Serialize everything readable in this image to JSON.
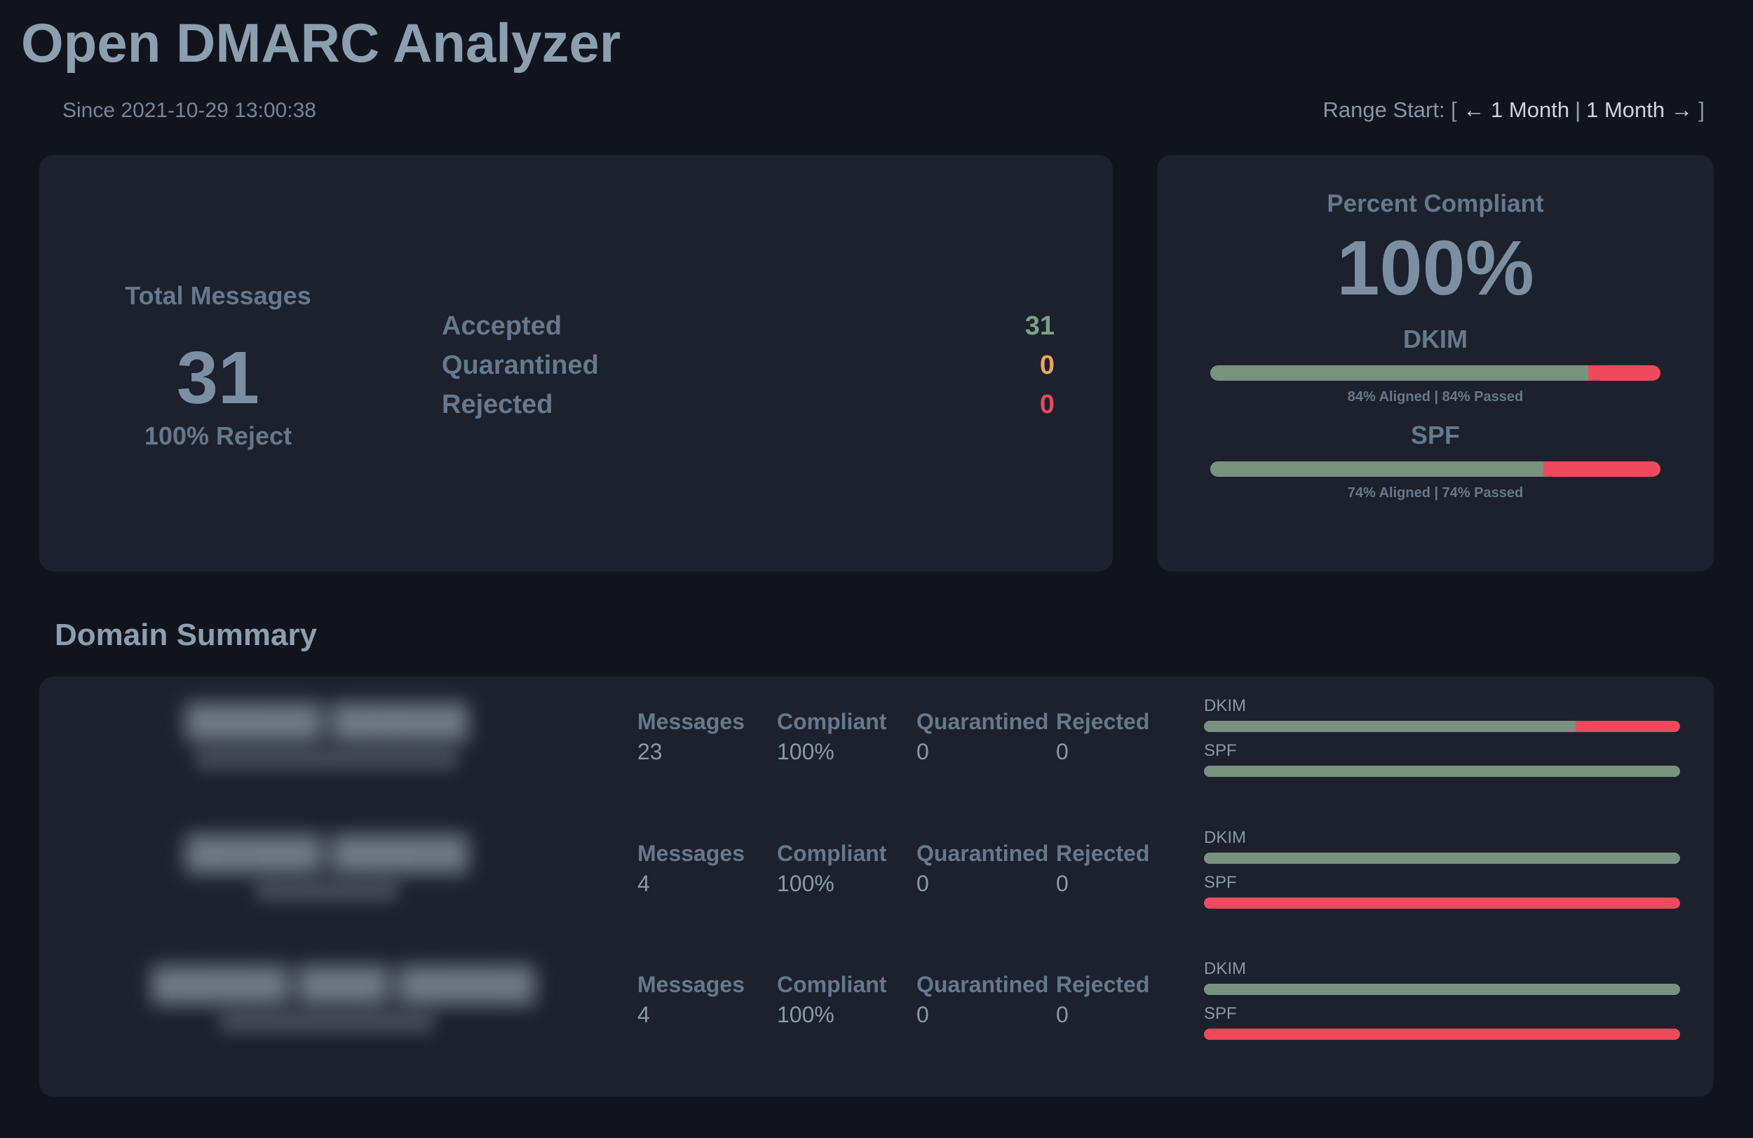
{
  "colors": {
    "green": "#7aa287",
    "orange": "#eda55f",
    "red": "#e44b60",
    "bar_green": "#79927f",
    "bar_red": "#ee4a5c",
    "page_bg": "#12141d",
    "card_bg": "#1d212d",
    "heading": "#8c9fb1"
  },
  "header": {
    "title": "Open DMARC Analyzer",
    "since": "Since 2021-10-29 13:00:38",
    "range": {
      "label": "Range Start: [",
      "prev_link": "← 1 Month",
      "separator": "|",
      "next_link": "1 Month →",
      "close": "]"
    }
  },
  "totals": {
    "title": "Total Messages",
    "count": "31",
    "subtitle": "100% Reject",
    "dispositions": [
      {
        "label": "Accepted",
        "value": "31",
        "color_key": "green"
      },
      {
        "label": "Quarantined",
        "value": "0",
        "color_key": "orange"
      },
      {
        "label": "Rejected",
        "value": "0",
        "color_key": "red"
      }
    ]
  },
  "compliance": {
    "title": "Percent Compliant",
    "percent": "100%",
    "bars": [
      {
        "name": "DKIM",
        "green_pct": 84,
        "caption": "84% Aligned | 84% Passed"
      },
      {
        "name": "SPF",
        "green_pct": 74,
        "caption": "74% Aligned | 74% Passed"
      }
    ]
  },
  "domain_summary": {
    "title": "Domain Summary",
    "rows": [
      {
        "domain_redacted": "██████ ██████",
        "domain_sub_redacted": "██████████████████████",
        "stats": [
          {
            "label": "Messages",
            "value": "23"
          },
          {
            "label": "Compliant",
            "value": "100%"
          },
          {
            "label": "Quarantined",
            "value": "0"
          },
          {
            "label": "Rejected",
            "value": "0"
          }
        ],
        "bars": [
          {
            "name": "DKIM",
            "green_pct": 78
          },
          {
            "name": "SPF",
            "green_pct": 100
          }
        ]
      },
      {
        "domain_redacted": "██████ ██████",
        "domain_sub_redacted": "████████████",
        "stats": [
          {
            "label": "Messages",
            "value": "4"
          },
          {
            "label": "Compliant",
            "value": "100%"
          },
          {
            "label": "Quarantined",
            "value": "0"
          },
          {
            "label": "Rejected",
            "value": "0"
          }
        ],
        "bars": [
          {
            "name": "DKIM",
            "green_pct": 100
          },
          {
            "name": "SPF",
            "green_pct": 0
          }
        ]
      },
      {
        "domain_redacted": "██████ ████ ██████",
        "domain_sub_redacted": "██████████████████",
        "stats": [
          {
            "label": "Messages",
            "value": "4"
          },
          {
            "label": "Compliant",
            "value": "100%"
          },
          {
            "label": "Quarantined",
            "value": "0"
          },
          {
            "label": "Rejected",
            "value": "0"
          }
        ],
        "bars": [
          {
            "name": "DKIM",
            "green_pct": 100
          },
          {
            "name": "SPF",
            "green_pct": 0
          }
        ]
      }
    ]
  }
}
